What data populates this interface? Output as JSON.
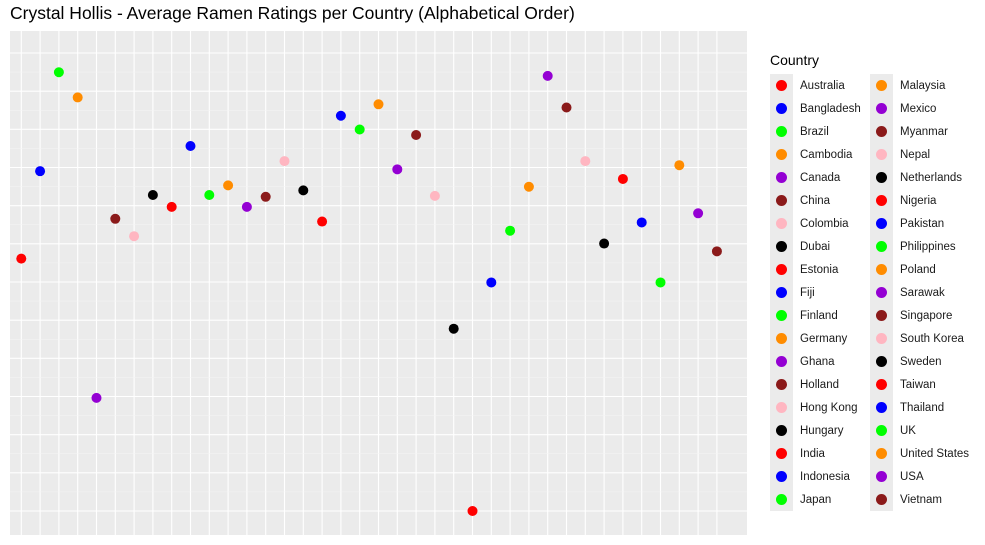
{
  "chart_data": {
    "type": "scatter",
    "title": "Crystal Hollis - Average Ramen Ratings per Country (Alphabetical Order)",
    "xlabel": "",
    "ylabel": "",
    "legend_title": "Country",
    "legend_position": "right",
    "grid": true,
    "x_axis_labels_shown": false,
    "y_axis_labels_shown": false,
    "ylim": [
      0,
      1
    ],
    "categories": [
      "Australia",
      "Bangladesh",
      "Brazil",
      "Cambodia",
      "Canada",
      "China",
      "Colombia",
      "Dubai",
      "Estonia",
      "Fiji",
      "Finland",
      "Germany",
      "Ghana",
      "Holland",
      "Hong Kong",
      "Hungary",
      "India",
      "Indonesia",
      "Japan",
      "Malaysia",
      "Mexico",
      "Myanmar",
      "Nepal",
      "Netherlands",
      "Nigeria",
      "Pakistan",
      "Philippines",
      "Poland",
      "Sarawak",
      "Singapore",
      "South Korea",
      "Sweden",
      "Taiwan",
      "Thailand",
      "UK",
      "United States",
      "USA",
      "Vietnam"
    ],
    "values": [
      0.551,
      0.742,
      0.958,
      0.903,
      0.247,
      0.638,
      0.6,
      0.69,
      0.664,
      0.797,
      0.69,
      0.711,
      0.664,
      0.686,
      0.764,
      0.7,
      0.632,
      0.863,
      0.833,
      0.888,
      0.746,
      0.821,
      0.688,
      0.398,
      0.0,
      0.499,
      0.612,
      0.708,
      0.95,
      0.881,
      0.764,
      0.584,
      0.725,
      0.63,
      0.499,
      0.755,
      0.65,
      0.567
    ],
    "colors": [
      "#ff0000",
      "#0000ff",
      "#00ff00",
      "#ff8c00",
      "#9400d3",
      "#8b1a1a",
      "#ffb6c1",
      "#000000",
      "#ff0000",
      "#0000ff",
      "#00ff00",
      "#ff8c00",
      "#9400d3",
      "#8b1a1a",
      "#ffb6c1",
      "#000000",
      "#ff0000",
      "#0000ff",
      "#00ff00",
      "#ff8c00",
      "#9400d3",
      "#8b1a1a",
      "#ffb6c1",
      "#000000",
      "#ff0000",
      "#0000ff",
      "#00ff00",
      "#ff8c00",
      "#9400d3",
      "#8b1a1a",
      "#ffb6c1",
      "#000000",
      "#ff0000",
      "#0000ff",
      "#00ff00",
      "#ff8c00",
      "#9400d3",
      "#8b1a1a"
    ]
  }
}
